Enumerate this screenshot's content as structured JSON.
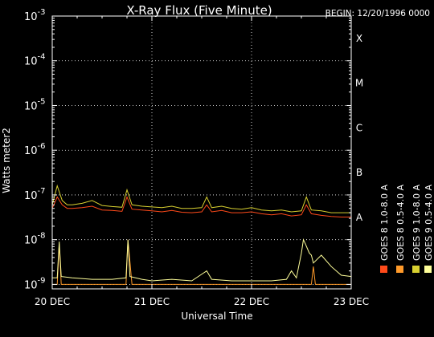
{
  "chart_data": {
    "type": "line",
    "title": "X-Ray Flux (Five Minute)",
    "begin_label": "BEGIN: 12/20/1996 0000",
    "xlabel": "Universal Time",
    "ylabel": "Watts meter2",
    "x_ticks": [
      "20 DEC",
      "21 DEC",
      "22 DEC",
      "23 DEC"
    ],
    "xlim_days": [
      0,
      3
    ],
    "ylim_exp": [
      -9.1,
      -3
    ],
    "y_ticks": [
      {
        "mant": "10",
        "exp": "-3"
      },
      {
        "mant": "10",
        "exp": "-4"
      },
      {
        "mant": "10",
        "exp": "-5"
      },
      {
        "mant": "10",
        "exp": "-6"
      },
      {
        "mant": "10",
        "exp": "-7"
      },
      {
        "mant": "10",
        "exp": "-8"
      },
      {
        "mant": "10",
        "exp": "-9"
      }
    ],
    "flare_classes": [
      "X",
      "M",
      "C",
      "B",
      "A"
    ],
    "legend": [
      {
        "name": "GOES 8 1.0-8.0 A",
        "color": "#ff4a1a"
      },
      {
        "name": "GOES 8 0.5-4.0 A",
        "color": "#ff9a2a"
      },
      {
        "name": "GOES 9 1.0-8.0 A",
        "color": "#d8d030"
      },
      {
        "name": "GOES 9 0.5-4.0 A",
        "color": "#ffff9a"
      }
    ],
    "series": [
      {
        "name": "GOES 8 1.0-8.0 A",
        "color": "#ff4a1a",
        "x": [
          0,
          0.05,
          0.1,
          0.15,
          0.2,
          0.3,
          0.4,
          0.5,
          0.6,
          0.7,
          0.75,
          0.8,
          0.9,
          1.0,
          1.1,
          1.2,
          1.3,
          1.4,
          1.5,
          1.55,
          1.6,
          1.7,
          1.8,
          1.9,
          2.0,
          2.1,
          2.2,
          2.3,
          2.4,
          2.5,
          2.55,
          2.6,
          2.7,
          2.8,
          2.9,
          3.0
        ],
        "y": [
          5e-08,
          9e-08,
          6e-08,
          5e-08,
          5e-08,
          5.2e-08,
          5.6e-08,
          4.6e-08,
          4.5e-08,
          4.3e-08,
          9e-08,
          4.8e-08,
          4.6e-08,
          4.4e-08,
          4.2e-08,
          4.5e-08,
          4.1e-08,
          4e-08,
          4.2e-08,
          6e-08,
          4.2e-08,
          4.5e-08,
          4e-08,
          4e-08,
          4.2e-08,
          3.8e-08,
          3.6e-08,
          3.8e-08,
          3.4e-08,
          3.6e-08,
          6e-08,
          3.8e-08,
          3.5e-08,
          3.3e-08,
          3.2e-08,
          3.2e-08
        ]
      },
      {
        "name": "GOES 8 0.5-4.0 A",
        "color": "#ff9a2a",
        "x": [
          0,
          0.05,
          0.07,
          0.09,
          0.3,
          0.5,
          0.7,
          0.74,
          0.76,
          0.8,
          1.0,
          1.2,
          1.5,
          1.8,
          2.0,
          2.3,
          2.5,
          2.6,
          2.62,
          2.64,
          2.7,
          2.8,
          3.0
        ],
        "y": [
          1e-09,
          1e-09,
          8e-09,
          1e-09,
          1e-09,
          1e-09,
          1e-09,
          1e-09,
          1e-08,
          1e-09,
          1e-09,
          1e-09,
          1e-09,
          1e-09,
          1e-09,
          1e-09,
          1e-09,
          1e-09,
          2.5e-09,
          1e-09,
          1e-09,
          1e-09,
          1e-09
        ]
      },
      {
        "name": "GOES 9 1.0-8.0 A",
        "color": "#d8d030",
        "x": [
          0,
          0.05,
          0.1,
          0.15,
          0.2,
          0.3,
          0.4,
          0.5,
          0.6,
          0.7,
          0.75,
          0.8,
          0.9,
          1.0,
          1.1,
          1.2,
          1.3,
          1.4,
          1.5,
          1.55,
          1.6,
          1.7,
          1.8,
          1.9,
          2.0,
          2.1,
          2.2,
          2.3,
          2.4,
          2.5,
          2.55,
          2.6,
          2.7,
          2.8,
          2.9,
          3.0
        ],
        "y": [
          6e-08,
          1.6e-07,
          7.5e-08,
          6e-08,
          6e-08,
          6.5e-08,
          7.5e-08,
          5.8e-08,
          5.5e-08,
          5.3e-08,
          1.3e-07,
          6e-08,
          5.6e-08,
          5.4e-08,
          5.2e-08,
          5.6e-08,
          5e-08,
          5e-08,
          5.2e-08,
          9e-08,
          5.2e-08,
          5.6e-08,
          5e-08,
          4.8e-08,
          5.2e-08,
          4.6e-08,
          4.4e-08,
          4.6e-08,
          4.2e-08,
          4.4e-08,
          9e-08,
          4.6e-08,
          4.4e-08,
          4e-08,
          4e-08,
          4e-08
        ]
      },
      {
        "name": "GOES 9 0.5-4.0 A",
        "color": "#ffff9a",
        "x": [
          0,
          0.05,
          0.07,
          0.09,
          0.2,
          0.4,
          0.6,
          0.74,
          0.76,
          0.78,
          0.9,
          1.0,
          1.2,
          1.4,
          1.55,
          1.6,
          1.8,
          2.0,
          2.2,
          2.35,
          2.4,
          2.45,
          2.5,
          2.52,
          2.54,
          2.58,
          2.6,
          2.62,
          2.7,
          2.8,
          2.9,
          3.0
        ],
        "y": [
          1.4e-09,
          1.4e-09,
          9e-09,
          1.5e-09,
          1.4e-09,
          1.3e-09,
          1.3e-09,
          1.4e-09,
          1e-08,
          1.5e-09,
          1.3e-09,
          1.2e-09,
          1.3e-09,
          1.2e-09,
          2e-09,
          1.3e-09,
          1.2e-09,
          1.2e-09,
          1.2e-09,
          1.3e-09,
          2e-09,
          1.4e-09,
          5e-09,
          1e-08,
          8e-09,
          5e-09,
          4.5e-09,
          3e-09,
          4.5e-09,
          2.5e-09,
          1.6e-09,
          1.5e-09
        ]
      }
    ],
    "grid": "dotted",
    "legend_position": "right, vertical"
  }
}
